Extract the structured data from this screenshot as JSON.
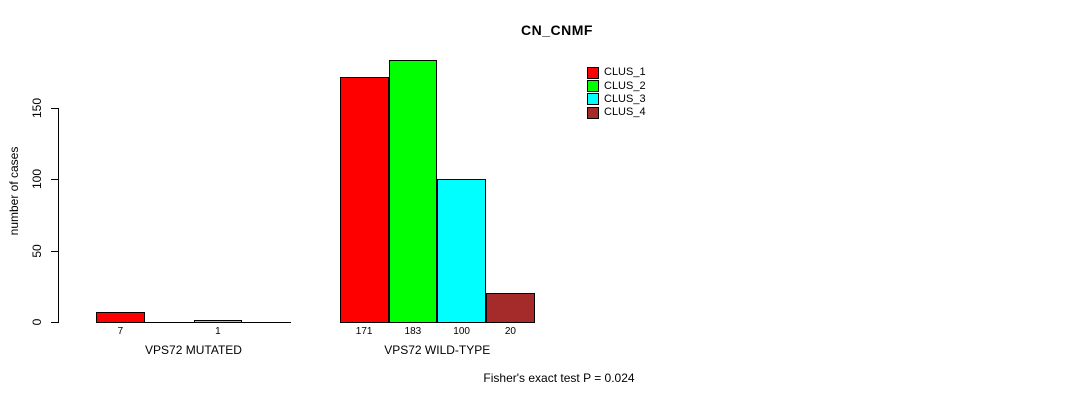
{
  "chart_data": {
    "type": "bar",
    "title": "CN_CNMF",
    "ylabel": "number of cases",
    "xlabel": "",
    "yticks": [
      0,
      50,
      100,
      150
    ],
    "ylim": [
      0,
      190
    ],
    "grid": false,
    "legend_position": "top-right",
    "categories": [
      "VPS72 MUTATED",
      "VPS72 WILD-TYPE"
    ],
    "series": [
      {
        "name": "CLUS_1",
        "color": "#ff0000",
        "values": [
          7,
          171
        ]
      },
      {
        "name": "CLUS_2",
        "color": "#00ff00",
        "values": [
          0,
          183
        ]
      },
      {
        "name": "CLUS_3",
        "color": "#00ffff",
        "values": [
          1,
          100
        ]
      },
      {
        "name": "CLUS_4",
        "color": "#a52a2a",
        "values": [
          0,
          20
        ]
      }
    ],
    "bar_value_labels": [
      [
        "7",
        "",
        "1",
        ""
      ],
      [
        "171",
        "183",
        "100",
        "20"
      ]
    ],
    "annotation": "Fisher's exact test P = 0.024"
  }
}
